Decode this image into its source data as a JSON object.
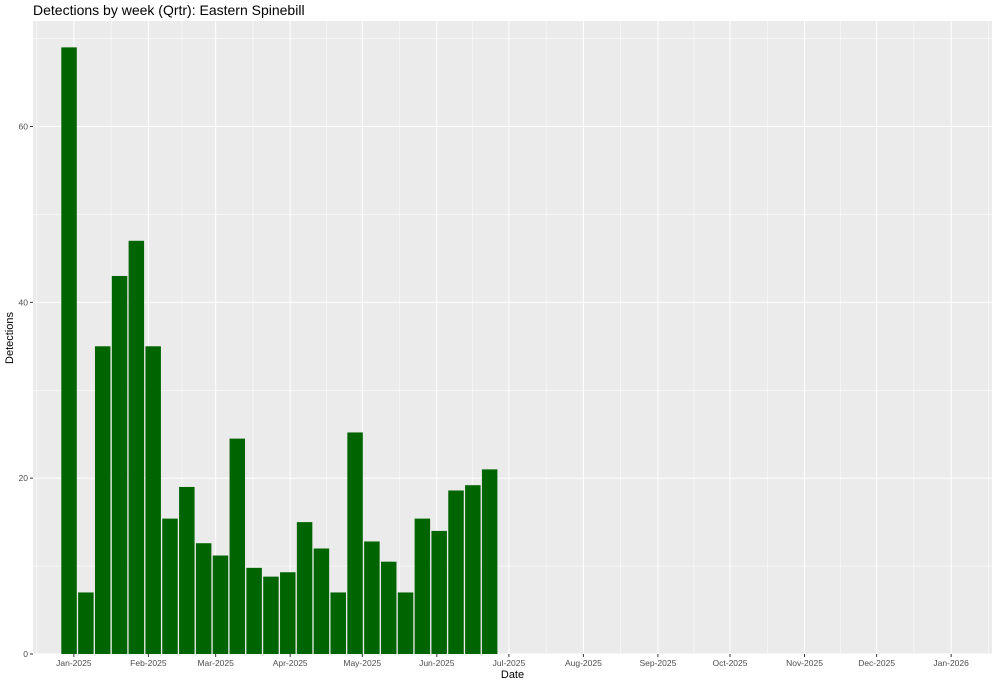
{
  "chart_data": {
    "type": "bar",
    "title": "Detections by week (Qrtr): Eastern Spinebill",
    "xlabel": "Date",
    "ylabel": "Detections",
    "x_ticks": [
      "Jan-2025",
      "Feb-2025",
      "Mar-2025",
      "Apr-2025",
      "May-2025",
      "Jun-2025",
      "Jul-2025",
      "Aug-2025",
      "Sep-2025",
      "Oct-2025",
      "Nov-2025",
      "Dec-2025",
      "Jan-2026"
    ],
    "y_ticks": [
      0,
      20,
      40,
      60
    ],
    "ylim": [
      0,
      72
    ],
    "xlim": [
      "2024-12-15",
      "2026-01-18"
    ],
    "series": [
      {
        "x": [
          "2024-12-30",
          "2025-01-06",
          "2025-01-13",
          "2025-01-20",
          "2025-01-27",
          "2025-02-03",
          "2025-02-10",
          "2025-02-17",
          "2025-02-24",
          "2025-03-03",
          "2025-03-10",
          "2025-03-17",
          "2025-03-24",
          "2025-03-31",
          "2025-04-07",
          "2025-04-14",
          "2025-04-21",
          "2025-04-28",
          "2025-05-05",
          "2025-05-12",
          "2025-05-19",
          "2025-05-26",
          "2025-06-02",
          "2025-06-09",
          "2025-06-16",
          "2025-06-23"
        ],
        "values": [
          69,
          7,
          35,
          43,
          47,
          35,
          15.4,
          19,
          12.6,
          11.2,
          24.5,
          9.8,
          8.8,
          9.3,
          15,
          12,
          7,
          25.2,
          12.8,
          10.5,
          7,
          15.4,
          14,
          18.6,
          19.2,
          21
        ]
      }
    ],
    "bar_color": "#006400",
    "panel_color": "#ebebeb",
    "grid": true,
    "legend": "none"
  }
}
